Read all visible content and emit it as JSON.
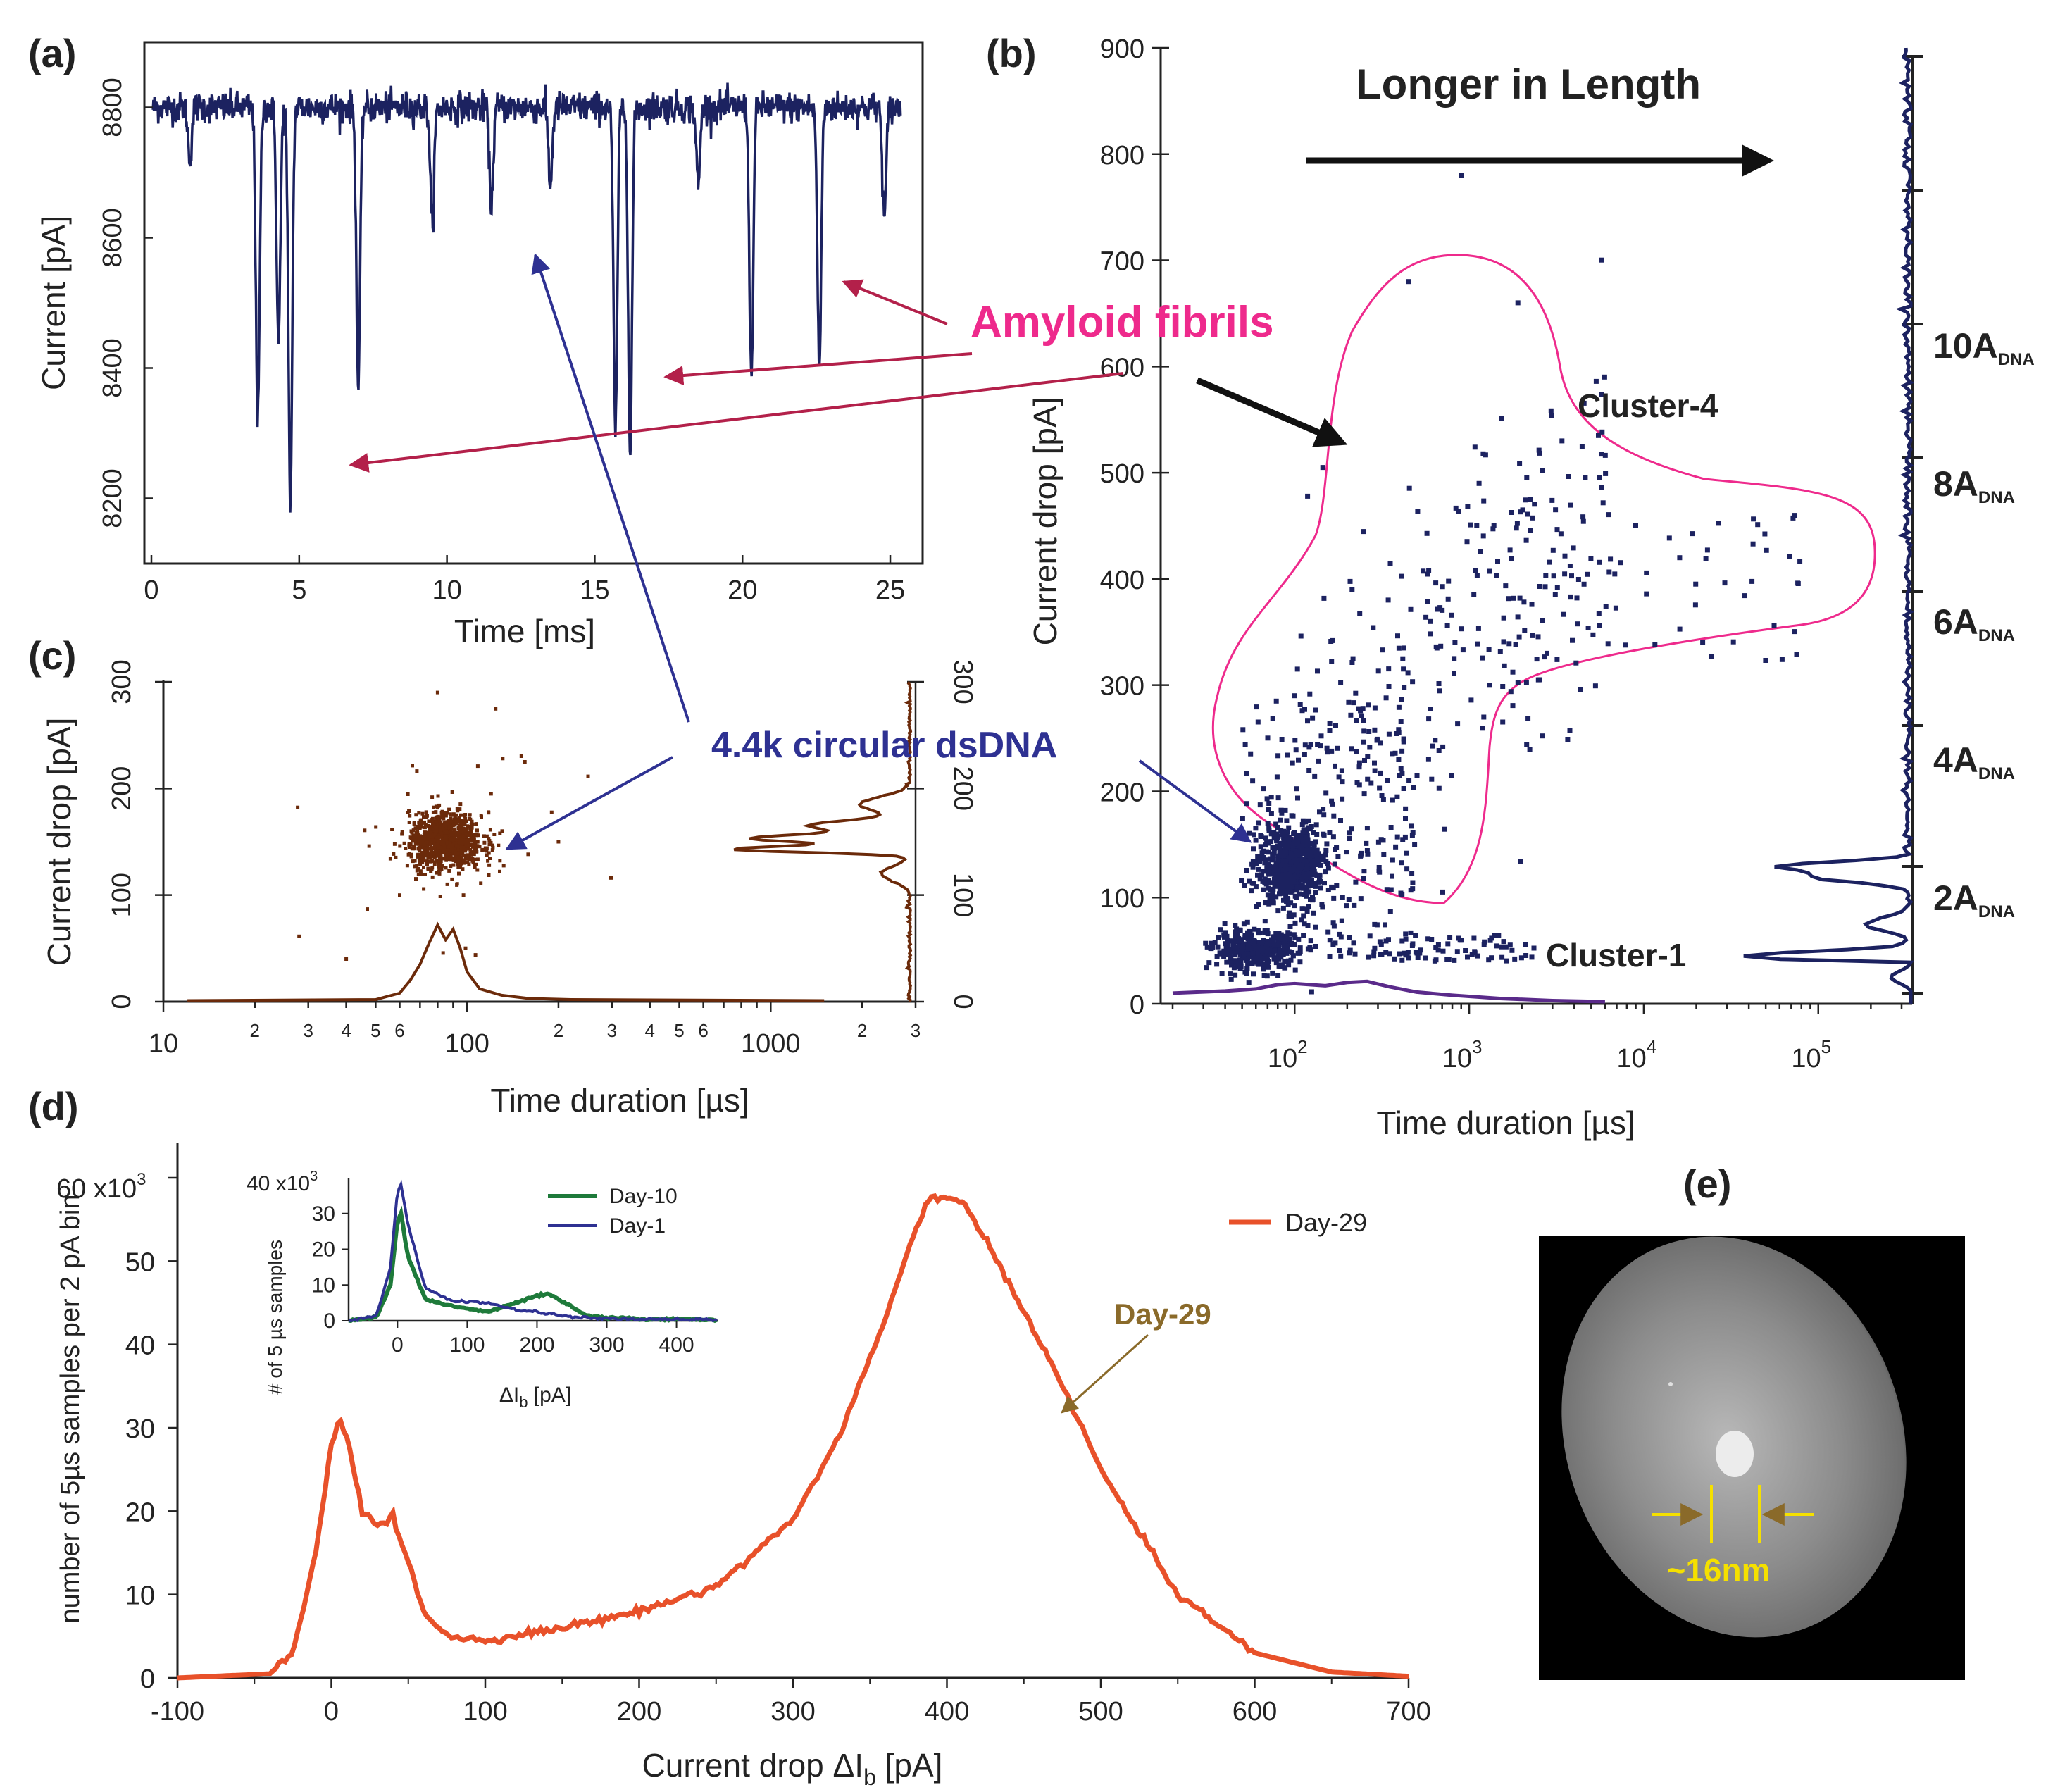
{
  "panels": {
    "a": "(a)",
    "b": "(b)",
    "c": "(c)",
    "d": "(d)",
    "e": "(e)"
  },
  "colors": {
    "navy": "#1c2260",
    "brown": "#6b2a0a",
    "orange": "#e8512a",
    "green": "#1e7a3a",
    "pink": "#ee2a8c",
    "crimson": "#b3204a",
    "blue_arrow": "#2e3192",
    "purple": "#5a2a8a"
  },
  "annotations": {
    "amyloid": "Amyloid fibrils",
    "dsdna": "4.4k circular dsDNA",
    "longer": "Longer in Length",
    "cluster4": "Cluster-4",
    "cluster1": "Cluster-1",
    "day29_arrow": "Day-29",
    "scale": "~16nm"
  },
  "chart_data": [
    {
      "id": "a",
      "type": "line",
      "xlabel": "Time [ms]",
      "ylabel": "Current [pA]",
      "xlim": [
        0,
        26
      ],
      "ylim": [
        8100,
        8900
      ],
      "xticks": [
        "0",
        "5",
        "10",
        "15",
        "20",
        "25"
      ],
      "yticks": [
        "8200",
        "8400",
        "8600",
        "8800"
      ],
      "baseline": 8800,
      "events": [
        {
          "t": 1.3,
          "y": 8720
        },
        {
          "t": 3.6,
          "y": 8320
        },
        {
          "t": 4.3,
          "y": 8440
        },
        {
          "t": 4.7,
          "y": 8190
        },
        {
          "t": 7.0,
          "y": 8370
        },
        {
          "t": 9.5,
          "y": 8620
        },
        {
          "t": 11.5,
          "y": 8650
        },
        {
          "t": 13.5,
          "y": 8680
        },
        {
          "t": 15.7,
          "y": 8300
        },
        {
          "t": 16.2,
          "y": 8260
        },
        {
          "t": 18.5,
          "y": 8680
        },
        {
          "t": 20.3,
          "y": 8380
        },
        {
          "t": 22.6,
          "y": 8400
        },
        {
          "t": 24.8,
          "y": 8630
        }
      ]
    },
    {
      "id": "b",
      "type": "scatter",
      "xlabel": "Time duration [µs]",
      "ylabel": "Current drop [pA]",
      "xscale": "log",
      "xlim": [
        20,
        300000
      ],
      "ylim": [
        0,
        900
      ],
      "xticks": [
        {
          "base": "10",
          "exp": "2"
        },
        {
          "base": "10",
          "exp": "3"
        },
        {
          "base": "10",
          "exp": "4"
        },
        {
          "base": "10",
          "exp": "5"
        }
      ],
      "yticks": [
        "0",
        "100",
        "200",
        "300",
        "400",
        "500",
        "600",
        "700",
        "800",
        "900"
      ],
      "right_axis": [
        {
          "main": "2A",
          "sub": "DNA",
          "y": 100
        },
        {
          "main": "4A",
          "sub": "DNA",
          "y": 230
        },
        {
          "main": "6A",
          "sub": "DNA",
          "y": 360
        },
        {
          "main": "8A",
          "sub": "DNA",
          "y": 490
        },
        {
          "main": "10A",
          "sub": "DNA",
          "y": 620
        }
      ],
      "dsdna_cluster_center": {
        "x": 95,
        "y": 130
      },
      "cluster1_center": {
        "x": 60,
        "y": 50
      },
      "marginal_peaks_y": [
        45,
        75,
        120,
        130
      ]
    },
    {
      "id": "c",
      "type": "scatter",
      "xlabel": "Time duration [µs]",
      "ylabel": "Current drop [pA]",
      "xscale": "log",
      "xlim": [
        10,
        3000
      ],
      "ylim": [
        0,
        300
      ],
      "xticks_major": [
        "10",
        "100",
        "1000"
      ],
      "xticks_minor": [
        "2",
        "3",
        "4",
        "5",
        "6",
        "2",
        "3",
        "4",
        "5",
        "6",
        "2",
        "3"
      ],
      "yticks": [
        "0",
        "100",
        "200",
        "300"
      ],
      "center": {
        "x": 85,
        "y": 150
      }
    },
    {
      "id": "d",
      "type": "line",
      "xlabel": "Current drop ΔI",
      "xlabel_sub": "b",
      "xlabel_unit": " [pA]",
      "ylabel": "number of 5µs samples per 2 pA bin",
      "xlim": [
        -100,
        700
      ],
      "ylim": [
        0,
        60000
      ],
      "xticks": [
        "-100",
        "0",
        "100",
        "200",
        "300",
        "400",
        "500",
        "600",
        "700"
      ],
      "yticks": [
        "0",
        "10",
        "20",
        "30",
        "40",
        "50"
      ],
      "ytop_label": "60 x10",
      "ytop_exp": "3",
      "series": [
        {
          "name": "Day-29",
          "x": [
            -100,
            -40,
            -25,
            -10,
            0,
            5,
            10,
            20,
            30,
            40,
            50,
            60,
            75,
            100,
            150,
            200,
            250,
            300,
            330,
            360,
            380,
            390,
            400,
            410,
            430,
            470,
            500,
            550,
            600,
            650,
            700
          ],
          "y": [
            0,
            500,
            3000,
            15000,
            28000,
            31000,
            29000,
            20000,
            18500,
            19000,
            14000,
            8000,
            5000,
            4500,
            6000,
            8000,
            11000,
            19000,
            29000,
            43000,
            54000,
            58000,
            57500,
            57000,
            51000,
            37000,
            25000,
            10000,
            3000,
            700,
            200
          ]
        }
      ],
      "inset": {
        "type": "line",
        "xlabel": "ΔI",
        "xlabel_sub": "b",
        "xlabel_unit": " [pA]",
        "ylabel": "# of 5 µs samples",
        "xlim": [
          -70,
          460
        ],
        "ylim": [
          0,
          40000
        ],
        "xticks": [
          "0",
          "100",
          "200",
          "300",
          "400"
        ],
        "yticks": [
          "0",
          "10",
          "20",
          "30"
        ],
        "ytop_label": "40 x10",
        "ytop_exp": "3",
        "series": [
          {
            "name": "Day-10",
            "x": [
              -70,
              -30,
              -10,
              0,
              5,
              15,
              40,
              80,
              130,
              170,
              200,
              215,
              240,
              270,
              300,
              350,
              460
            ],
            "y": [
              0,
              1000,
              10000,
              28000,
              30000,
              18000,
              6000,
              4000,
              2500,
              5000,
              7000,
              7500,
              5000,
              1500,
              800,
              500,
              300
            ]
          },
          {
            "name": "Day-1",
            "x": [
              -70,
              -30,
              -10,
              0,
              5,
              15,
              40,
              80,
              130,
              170,
              200,
              250,
              300,
              350,
              460
            ],
            "y": [
              0,
              1500,
              15000,
              36000,
              38000,
              27000,
              9000,
              5500,
              5000,
              3000,
              2500,
              1000,
              600,
              400,
              300
            ]
          }
        ]
      }
    }
  ]
}
